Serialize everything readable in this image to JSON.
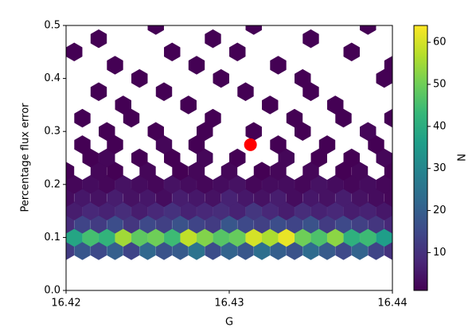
{
  "chart_data": {
    "type": "hexbin",
    "xlabel": "G",
    "ylabel": "Percentage flux error",
    "colorbar_label": "N",
    "colormap": "viridis",
    "xlim": [
      16.42,
      16.44
    ],
    "xticks": [
      16.42,
      16.43,
      16.44
    ],
    "ylim": [
      0,
      0.5
    ],
    "yticks": [
      {
        "value": 0,
        "label": "0.0"
      },
      0.1,
      0.2,
      0.3,
      0.4,
      0.5
    ],
    "clim": [
      1,
      64
    ],
    "cticks": [
      10,
      20,
      30,
      40,
      50,
      60
    ],
    "rows": [
      {
        "y": 0.075,
        "x": [
          16.42,
          16.421,
          16.422,
          16.423,
          16.424,
          16.425,
          16.426,
          16.427,
          16.428,
          16.429,
          16.43,
          16.431,
          16.432,
          16.433,
          16.434,
          16.435,
          16.436,
          16.437,
          16.438,
          16.439,
          16.44
        ],
        "values": [
          12,
          18,
          15,
          20,
          14,
          22,
          17,
          19,
          25,
          16,
          21,
          18,
          24,
          20,
          17,
          23,
          19,
          15,
          21,
          14,
          10
        ]
      },
      {
        "y": 0.1,
        "x": [
          16.4205,
          16.4215,
          16.4225,
          16.4235,
          16.4245,
          16.4255,
          16.4265,
          16.4275,
          16.4285,
          16.4295,
          16.4305,
          16.4315,
          16.4325,
          16.4335,
          16.4345,
          16.4355,
          16.4365,
          16.4375,
          16.4385,
          16.4395
        ],
        "values": [
          38,
          45,
          42,
          55,
          48,
          50,
          44,
          58,
          52,
          47,
          49,
          60,
          56,
          62,
          50,
          46,
          53,
          41,
          44,
          36
        ]
      },
      {
        "y": 0.125,
        "x": [
          16.42,
          16.421,
          16.422,
          16.423,
          16.424,
          16.425,
          16.426,
          16.427,
          16.428,
          16.429,
          16.43,
          16.431,
          16.432,
          16.433,
          16.434,
          16.435,
          16.436,
          16.437,
          16.438,
          16.439,
          16.44
        ],
        "values": [
          9,
          14,
          12,
          16,
          11,
          15,
          13,
          17,
          14,
          12,
          18,
          15,
          13,
          16,
          14,
          17,
          12,
          15,
          13,
          11,
          8
        ]
      },
      {
        "y": 0.15,
        "x": [
          16.4205,
          16.4215,
          16.4225,
          16.4235,
          16.4245,
          16.4255,
          16.4265,
          16.4275,
          16.4285,
          16.4295,
          16.4305,
          16.4315,
          16.4325,
          16.4335,
          16.4345,
          16.4355,
          16.4365,
          16.4375,
          16.4385,
          16.4395
        ],
        "values": [
          6,
          8,
          7,
          9,
          6,
          8,
          10,
          7,
          8,
          9,
          7,
          11,
          8,
          6,
          9,
          7,
          8,
          6,
          7,
          5
        ]
      },
      {
        "y": 0.175,
        "x": [
          16.42,
          16.421,
          16.422,
          16.423,
          16.424,
          16.425,
          16.426,
          16.427,
          16.428,
          16.429,
          16.43,
          16.431,
          16.432,
          16.433,
          16.434,
          16.435,
          16.436,
          16.437,
          16.438,
          16.439,
          16.44
        ],
        "values": [
          3,
          5,
          4,
          6,
          4,
          5,
          3,
          6,
          5,
          4,
          7,
          5,
          4,
          6,
          3,
          5,
          4,
          6,
          4,
          3,
          2
        ]
      },
      {
        "y": 0.2,
        "x": [
          16.4205,
          16.4215,
          16.4225,
          16.4235,
          16.4245,
          16.4255,
          16.4265,
          16.4275,
          16.4285,
          16.4295,
          16.4305,
          16.4315,
          16.4325,
          16.4335,
          16.4345,
          16.4355,
          16.4365,
          16.4375,
          16.4385,
          16.4395
        ],
        "values": [
          2,
          3,
          2,
          4,
          3,
          2,
          4,
          3,
          2,
          3,
          4,
          2,
          3,
          3,
          2,
          4,
          3,
          2,
          3,
          2
        ]
      },
      {
        "y": 0.225,
        "x": [
          16.42,
          16.422,
          16.423,
          16.425,
          16.427,
          16.428,
          16.43,
          16.432,
          16.433,
          16.435,
          16.437,
          16.438,
          16.44
        ],
        "values": [
          1,
          2,
          1,
          2,
          1,
          2,
          2,
          1,
          2,
          2,
          1,
          2,
          1
        ]
      },
      {
        "y": 0.25,
        "x": [
          16.4215,
          16.4225,
          16.4245,
          16.4265,
          16.4285,
          16.4305,
          16.4335,
          16.4355,
          16.4375,
          16.4395
        ],
        "values": [
          1,
          2,
          1,
          1,
          2,
          1,
          2,
          1,
          1,
          2
        ]
      },
      {
        "y": 0.275,
        "x": [
          16.421,
          16.423,
          16.426,
          16.428,
          16.433,
          16.436,
          16.439
        ],
        "values": [
          1,
          1,
          2,
          1,
          1,
          1,
          1
        ]
      },
      {
        "y": 0.3,
        "x": [
          16.4225,
          16.4255,
          16.4285,
          16.4315,
          16.4345,
          16.4385
        ],
        "values": [
          1,
          1,
          1,
          1,
          1,
          2
        ]
      },
      {
        "y": 0.325,
        "x": [
          16.421,
          16.424,
          16.429,
          16.434,
          16.437,
          16.44
        ],
        "values": [
          1,
          1,
          1,
          1,
          1,
          1
        ]
      },
      {
        "y": 0.35,
        "x": [
          16.4235,
          16.4275,
          16.4325,
          16.4365
        ],
        "values": [
          1,
          1,
          1,
          1
        ]
      },
      {
        "y": 0.375,
        "x": [
          16.422,
          16.426,
          16.431,
          16.435
        ],
        "values": [
          1,
          1,
          1,
          1
        ]
      },
      {
        "y": 0.4,
        "x": [
          16.4245,
          16.4295,
          16.4345,
          16.4395
        ],
        "values": [
          1,
          1,
          1,
          1
        ]
      },
      {
        "y": 0.425,
        "x": [
          16.423,
          16.428,
          16.433,
          16.44
        ],
        "values": [
          1,
          1,
          1,
          1
        ]
      },
      {
        "y": 0.45,
        "x": [
          16.4205,
          16.4265,
          16.4305,
          16.4375
        ],
        "values": [
          1,
          1,
          1,
          1
        ]
      },
      {
        "y": 0.475,
        "x": [
          16.422,
          16.429,
          16.435
        ],
        "values": [
          1,
          1,
          1
        ]
      },
      {
        "y": 0.5,
        "x": [
          16.4255,
          16.4315,
          16.4385
        ],
        "values": [
          1,
          1,
          1
        ]
      }
    ],
    "highlight": {
      "x": 16.4313,
      "y": 0.275,
      "color": "#ff0000"
    }
  }
}
